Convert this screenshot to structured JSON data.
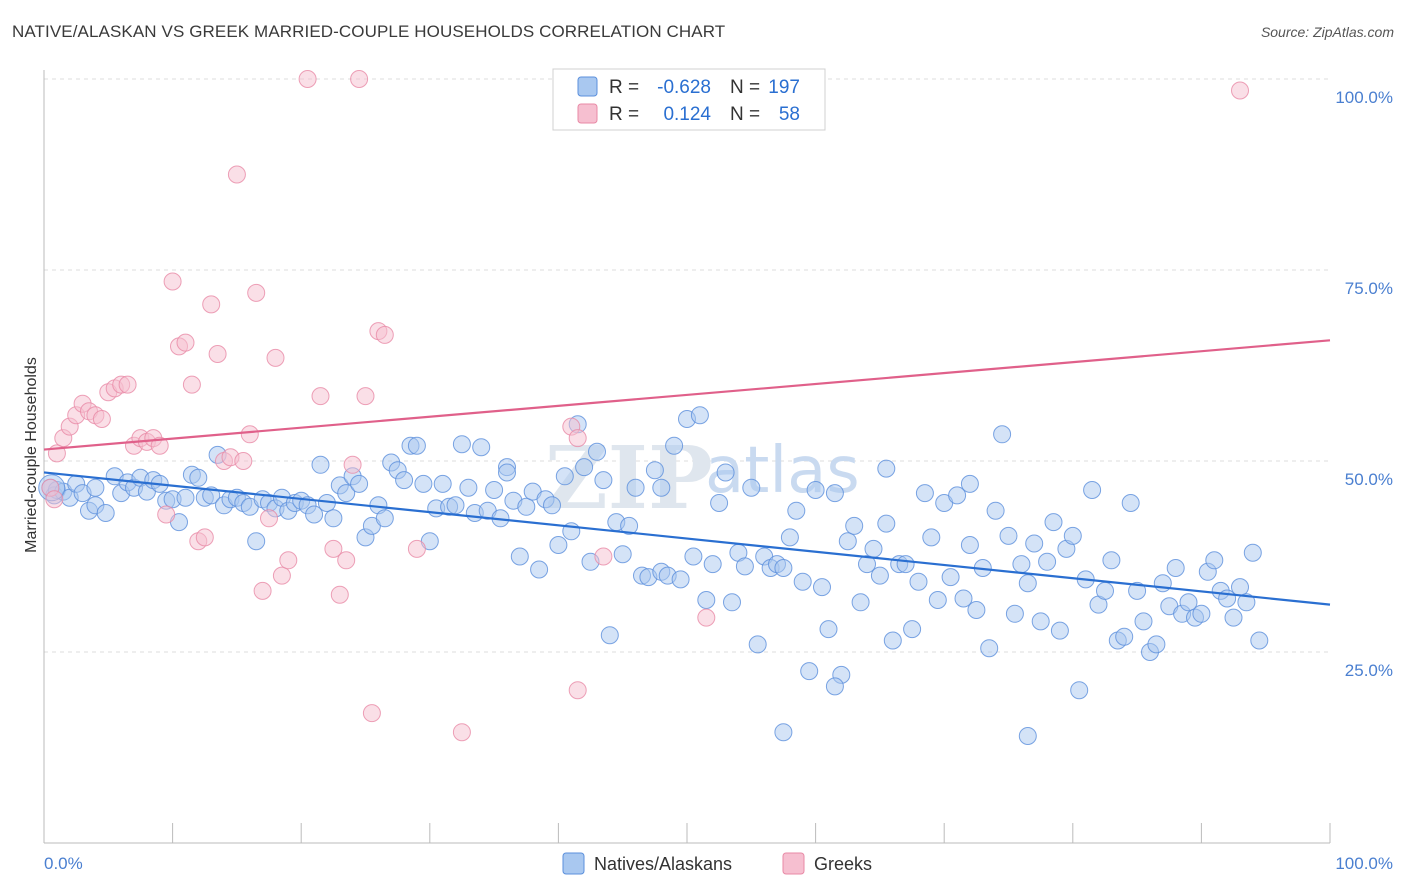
{
  "title": "NATIVE/ALASKAN VS GREEK MARRIED-COUPLE HOUSEHOLDS CORRELATION CHART",
  "source": "Source: ZipAtlas.com",
  "watermark": {
    "zip": "ZIP",
    "atlas": "atlas"
  },
  "legend": {
    "rows": [
      {
        "r_label": "R =",
        "r_value": "-0.628",
        "n_label": "N =",
        "n_value": "197"
      },
      {
        "r_label": "R =",
        "r_value": "0.124",
        "n_label": "N =",
        "n_value": "58"
      }
    ]
  },
  "colors": {
    "blue_fill": "#a9c8f0",
    "blue_stroke": "#5b8fdc",
    "blue_line": "#2a6fd1",
    "pink_fill": "#f6bfd0",
    "pink_stroke": "#e88aa6",
    "pink_line": "#e0608a",
    "tick_text": "#4a7fd0",
    "grid": "#dcdcdc"
  },
  "chart_data": {
    "type": "scatter",
    "title": "NATIVE/ALASKAN VS GREEK MARRIED-COUPLE HOUSEHOLDS CORRELATION CHART",
    "xlabel": "",
    "ylabel": "Married-couple Households",
    "xlim": [
      0,
      100
    ],
    "ylim": [
      0,
      104
    ],
    "x_tick_labels": [
      "0.0%",
      "100.0%"
    ],
    "y_ticks": [
      25,
      50,
      75,
      100
    ],
    "y_tick_labels": [
      "25.0%",
      "50.0%",
      "75.0%",
      "100.0%"
    ],
    "grid": true,
    "legend_position": "top-center",
    "series": [
      {
        "name": "Natives/Alaskans",
        "color": "#a9c8f0",
        "r": -0.628,
        "n": 197,
        "trend": {
          "x": [
            0,
            100
          ],
          "y": [
            48.5,
            31.2
          ]
        },
        "points": [
          [
            0.5,
            46.5
          ],
          [
            0.8,
            45.5
          ],
          [
            1.0,
            46.2
          ],
          [
            1.5,
            46.0
          ],
          [
            2.0,
            45.2
          ],
          [
            2.5,
            47.0
          ],
          [
            3.0,
            45.8
          ],
          [
            3.5,
            43.5
          ],
          [
            4.0,
            44.2
          ],
          [
            4.8,
            43.2
          ],
          [
            5.5,
            48.0
          ],
          [
            6.0,
            45.8
          ],
          [
            6.5,
            47.2
          ],
          [
            7.0,
            46.5
          ],
          [
            7.5,
            47.8
          ],
          [
            8.0,
            46.0
          ],
          [
            8.5,
            47.5
          ],
          [
            9.0,
            47.0
          ],
          [
            9.5,
            44.8
          ],
          [
            10.0,
            45.0
          ],
          [
            10.5,
            42.0
          ],
          [
            11.0,
            45.2
          ],
          [
            11.5,
            48.2
          ],
          [
            12.0,
            47.8
          ],
          [
            12.5,
            45.2
          ],
          [
            13.0,
            45.5
          ],
          [
            13.5,
            50.8
          ],
          [
            14.0,
            44.2
          ],
          [
            14.5,
            45.0
          ],
          [
            15.0,
            45.2
          ],
          [
            15.5,
            44.5
          ],
          [
            16.0,
            44.0
          ],
          [
            16.5,
            39.5
          ],
          [
            17.0,
            45.0
          ],
          [
            17.5,
            44.5
          ],
          [
            18.0,
            43.8
          ],
          [
            18.5,
            45.2
          ],
          [
            19.0,
            43.5
          ],
          [
            19.5,
            44.5
          ],
          [
            20.0,
            44.8
          ],
          [
            20.5,
            44.2
          ],
          [
            21.0,
            43.0
          ],
          [
            21.5,
            49.5
          ],
          [
            22.0,
            44.5
          ],
          [
            22.5,
            42.5
          ],
          [
            23.0,
            46.8
          ],
          [
            23.5,
            45.8
          ],
          [
            24.0,
            48.0
          ],
          [
            24.5,
            47.0
          ],
          [
            25.0,
            40.0
          ],
          [
            25.5,
            41.5
          ],
          [
            26.0,
            44.2
          ],
          [
            26.5,
            42.5
          ],
          [
            27.0,
            49.8
          ],
          [
            27.5,
            48.8
          ],
          [
            28.0,
            47.5
          ],
          [
            28.5,
            52.0
          ],
          [
            29.0,
            52.0
          ],
          [
            29.5,
            47.0
          ],
          [
            30.0,
            39.5
          ],
          [
            30.5,
            43.8
          ],
          [
            31.0,
            47.0
          ],
          [
            31.5,
            44.0
          ],
          [
            32.0,
            44.2
          ],
          [
            32.5,
            52.2
          ],
          [
            33.0,
            46.5
          ],
          [
            33.5,
            43.2
          ],
          [
            34.0,
            51.8
          ],
          [
            34.5,
            43.5
          ],
          [
            35.0,
            46.2
          ],
          [
            35.5,
            42.5
          ],
          [
            36.0,
            49.2
          ],
          [
            36.5,
            44.8
          ],
          [
            37.0,
            37.5
          ],
          [
            37.5,
            44.0
          ],
          [
            38.0,
            46.0
          ],
          [
            38.5,
            35.8
          ],
          [
            39.0,
            45.0
          ],
          [
            39.5,
            44.2
          ],
          [
            40.0,
            39.0
          ],
          [
            40.5,
            48.0
          ],
          [
            41.0,
            40.8
          ],
          [
            41.5,
            54.8
          ],
          [
            42.0,
            49.2
          ],
          [
            42.5,
            36.8
          ],
          [
            43.0,
            51.2
          ],
          [
            43.5,
            47.5
          ],
          [
            44.0,
            27.2
          ],
          [
            44.5,
            42.0
          ],
          [
            45.0,
            37.8
          ],
          [
            45.5,
            41.5
          ],
          [
            46.0,
            46.5
          ],
          [
            46.5,
            35.0
          ],
          [
            47.0,
            34.8
          ],
          [
            47.5,
            48.8
          ],
          [
            48.0,
            35.5
          ],
          [
            48.5,
            35.0
          ],
          [
            49.0,
            52.0
          ],
          [
            49.5,
            34.5
          ],
          [
            50.0,
            55.5
          ],
          [
            50.5,
            37.5
          ],
          [
            51.0,
            56.0
          ],
          [
            51.5,
            31.8
          ],
          [
            52.0,
            36.5
          ],
          [
            52.5,
            44.5
          ],
          [
            53.0,
            48.5
          ],
          [
            53.5,
            31.5
          ],
          [
            54.0,
            38.0
          ],
          [
            54.5,
            36.2
          ],
          [
            55.0,
            46.5
          ],
          [
            55.5,
            26.0
          ],
          [
            56.0,
            37.5
          ],
          [
            56.5,
            36.0
          ],
          [
            57.0,
            36.5
          ],
          [
            57.5,
            36.0
          ],
          [
            58.0,
            40.0
          ],
          [
            58.5,
            43.5
          ],
          [
            59.0,
            34.2
          ],
          [
            59.5,
            22.5
          ],
          [
            60.0,
            46.2
          ],
          [
            60.5,
            33.5
          ],
          [
            61.0,
            28.0
          ],
          [
            61.5,
            45.8
          ],
          [
            62.0,
            22.0
          ],
          [
            62.5,
            39.5
          ],
          [
            63.0,
            41.5
          ],
          [
            63.5,
            31.5
          ],
          [
            64.0,
            36.5
          ],
          [
            64.5,
            38.5
          ],
          [
            65.0,
            35.0
          ],
          [
            65.5,
            41.8
          ],
          [
            66.0,
            26.5
          ],
          [
            66.5,
            36.5
          ],
          [
            67.0,
            36.5
          ],
          [
            67.5,
            28.0
          ],
          [
            68.0,
            34.2
          ],
          [
            68.5,
            45.8
          ],
          [
            69.0,
            40.0
          ],
          [
            69.5,
            31.8
          ],
          [
            70.0,
            44.5
          ],
          [
            70.5,
            34.8
          ],
          [
            71.0,
            45.5
          ],
          [
            71.5,
            32.0
          ],
          [
            72.0,
            39.0
          ],
          [
            72.5,
            30.5
          ],
          [
            73.0,
            36.0
          ],
          [
            73.5,
            25.5
          ],
          [
            74.0,
            43.5
          ],
          [
            74.5,
            53.5
          ],
          [
            75.0,
            40.2
          ],
          [
            75.5,
            30.0
          ],
          [
            76.0,
            36.5
          ],
          [
            76.5,
            34.0
          ],
          [
            77.0,
            39.2
          ],
          [
            77.5,
            29.0
          ],
          [
            78.0,
            36.8
          ],
          [
            78.5,
            42.0
          ],
          [
            79.0,
            27.8
          ],
          [
            79.5,
            38.5
          ],
          [
            80.0,
            40.2
          ],
          [
            80.5,
            20.0
          ],
          [
            81.0,
            34.5
          ],
          [
            81.5,
            46.2
          ],
          [
            82.0,
            31.2
          ],
          [
            82.5,
            33.0
          ],
          [
            83.0,
            37.0
          ],
          [
            83.5,
            26.5
          ],
          [
            84.0,
            27.0
          ],
          [
            84.5,
            44.5
          ],
          [
            85.0,
            33.0
          ],
          [
            85.5,
            29.0
          ],
          [
            86.0,
            25.0
          ],
          [
            86.5,
            26.0
          ],
          [
            87.0,
            34.0
          ],
          [
            87.5,
            31.0
          ],
          [
            88.0,
            36.0
          ],
          [
            88.5,
            30.0
          ],
          [
            89.0,
            31.5
          ],
          [
            89.5,
            29.5
          ],
          [
            90.0,
            30.0
          ],
          [
            90.5,
            35.5
          ],
          [
            91.0,
            37.0
          ],
          [
            91.5,
            33.0
          ],
          [
            92.0,
            32.0
          ],
          [
            92.5,
            29.5
          ],
          [
            93.0,
            33.5
          ],
          [
            93.5,
            31.5
          ],
          [
            94.0,
            38.0
          ],
          [
            94.5,
            26.5
          ],
          [
            61.5,
            20.5
          ],
          [
            57.5,
            14.5
          ],
          [
            76.5,
            14.0
          ],
          [
            65.5,
            49.0
          ],
          [
            48.0,
            46.5
          ],
          [
            72.0,
            47.0
          ],
          [
            36.0,
            48.5
          ],
          [
            4.0,
            46.5
          ]
        ]
      },
      {
        "name": "Greeks",
        "color": "#f6bfd0",
        "r": 0.124,
        "n": 58,
        "trend": {
          "x": [
            0,
            100
          ],
          "y": [
            51.5,
            65.8
          ]
        },
        "points": [
          [
            0.5,
            46.5
          ],
          [
            0.8,
            45.0
          ],
          [
            1.0,
            51.0
          ],
          [
            1.5,
            53.0
          ],
          [
            2.0,
            54.5
          ],
          [
            2.5,
            56.0
          ],
          [
            3.0,
            57.5
          ],
          [
            3.5,
            56.5
          ],
          [
            4.0,
            56.0
          ],
          [
            4.5,
            55.5
          ],
          [
            5.0,
            59.0
          ],
          [
            5.5,
            59.5
          ],
          [
            6.0,
            60.0
          ],
          [
            6.5,
            60.0
          ],
          [
            7.0,
            52.0
          ],
          [
            7.5,
            53.0
          ],
          [
            8.0,
            52.5
          ],
          [
            8.5,
            53.0
          ],
          [
            9.0,
            52.0
          ],
          [
            9.5,
            43.0
          ],
          [
            10.0,
            73.5
          ],
          [
            10.5,
            65.0
          ],
          [
            11.0,
            65.5
          ],
          [
            11.5,
            60.0
          ],
          [
            12.0,
            39.5
          ],
          [
            12.5,
            40.0
          ],
          [
            13.0,
            70.5
          ],
          [
            13.5,
            64.0
          ],
          [
            14.0,
            50.0
          ],
          [
            14.5,
            50.5
          ],
          [
            15.0,
            87.5
          ],
          [
            15.5,
            50.0
          ],
          [
            16.0,
            53.5
          ],
          [
            16.5,
            72.0
          ],
          [
            17.0,
            33.0
          ],
          [
            17.5,
            42.5
          ],
          [
            18.0,
            63.5
          ],
          [
            18.5,
            35.0
          ],
          [
            19.0,
            37.0
          ],
          [
            20.5,
            100.0
          ],
          [
            21.5,
            58.5
          ],
          [
            22.5,
            38.5
          ],
          [
            23.0,
            32.5
          ],
          [
            23.5,
            37.0
          ],
          [
            24.0,
            49.5
          ],
          [
            24.5,
            100.0
          ],
          [
            25.0,
            58.5
          ],
          [
            25.5,
            17.0
          ],
          [
            26.0,
            67.0
          ],
          [
            26.5,
            66.5
          ],
          [
            29.0,
            38.5
          ],
          [
            32.5,
            14.5
          ],
          [
            41.0,
            54.5
          ],
          [
            41.5,
            53.0
          ],
          [
            41.5,
            20.0
          ],
          [
            43.5,
            37.5
          ],
          [
            51.5,
            29.5
          ],
          [
            93.0,
            98.5
          ]
        ]
      }
    ]
  },
  "bottom_legend": [
    {
      "label": "Natives/Alaskans"
    },
    {
      "label": "Greeks"
    }
  ]
}
